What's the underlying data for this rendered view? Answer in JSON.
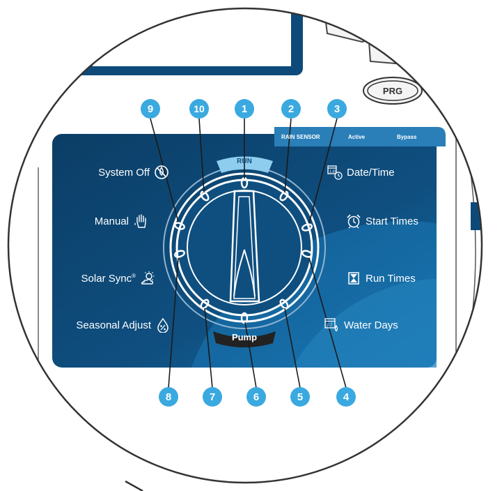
{
  "colors": {
    "panel": "#0f4f80",
    "panel_dark": "#0b3e66",
    "accent": "#3aa9e0",
    "run_tab": "#8fcdef",
    "pump_tab": "#222222",
    "white": "#ffffff"
  },
  "button": {
    "prg_label": "PRG"
  },
  "rain_sensor": {
    "label": "RAIN SENSOR",
    "active": "Active",
    "bypass": "Bypass"
  },
  "dial": {
    "run_label": "RUN",
    "pump_label": "Pump"
  },
  "left_positions": [
    {
      "label": "System Off",
      "icon": "no-water-icon"
    },
    {
      "label": "Manual",
      "icon": "hand-drop-icon"
    },
    {
      "label": "Solar Sync",
      "superscript": "®",
      "icon": "sun-cloud-icon"
    },
    {
      "label": "Seasonal Adjust",
      "icon": "percent-drop-icon"
    }
  ],
  "right_positions": [
    {
      "label": "Date/Time",
      "icon": "calendar-clock-icon"
    },
    {
      "label": "Start Times",
      "icon": "alarm-clock-icon"
    },
    {
      "label": "Run Times",
      "icon": "hourglass-icon"
    },
    {
      "label": "Water Days",
      "icon": "calendar-drop-icon"
    }
  ],
  "callouts": [
    "1",
    "2",
    "3",
    "4",
    "5",
    "6",
    "7",
    "8",
    "9",
    "10"
  ]
}
